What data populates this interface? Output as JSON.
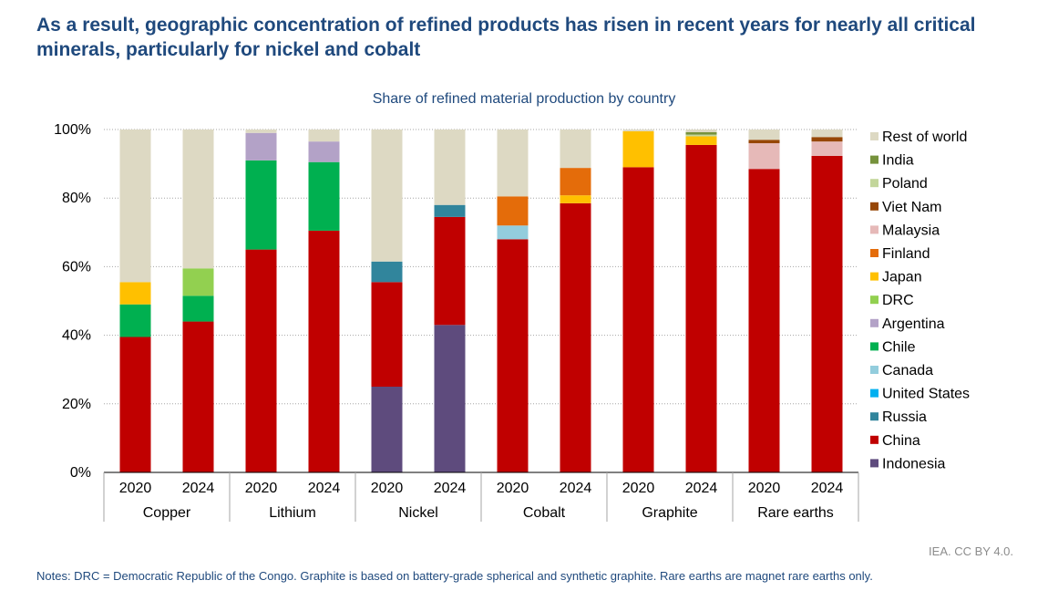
{
  "title": "As a result, geographic concentration of refined products has risen in recent years for nearly all critical minerals, particularly for nickel and cobalt",
  "source": "IEA. CC BY 4.0.",
  "notes": "Notes: DRC = Democratic Republic of the Congo. Graphite is based on battery-grade spherical and synthetic graphite. Rare earths are magnet rare earths only.",
  "chart_data": {
    "type": "bar",
    "stacked": true,
    "title": "Share of refined material production by country",
    "ylim": [
      0,
      100
    ],
    "yticks": [
      0,
      20,
      40,
      60,
      80,
      100
    ],
    "ytick_labels": [
      "0%",
      "20%",
      "40%",
      "60%",
      "80%",
      "100%"
    ],
    "grid": "dotted horizontal",
    "legend_position": "right",
    "groups": [
      "Copper",
      "Lithium",
      "Nickel",
      "Cobalt",
      "Graphite",
      "Rare earths"
    ],
    "categories": [
      "2020",
      "2024",
      "2020",
      "2024",
      "2020",
      "2024",
      "2020",
      "2024",
      "2020",
      "2024",
      "2020",
      "2024"
    ],
    "series": [
      {
        "name": "Indonesia",
        "color": "#5e4b7d",
        "values": [
          0,
          0,
          0,
          0,
          25,
          43,
          0,
          0,
          0,
          0,
          0,
          0
        ]
      },
      {
        "name": "China",
        "color": "#c00000",
        "values": [
          39.5,
          44,
          65,
          70.5,
          30.5,
          31.5,
          68,
          78.5,
          89,
          95.5,
          88.5,
          92.3
        ]
      },
      {
        "name": "Russia",
        "color": "#31859c",
        "values": [
          0,
          0,
          0,
          0,
          6,
          3.5,
          0,
          0,
          0,
          0,
          0,
          0
        ]
      },
      {
        "name": "United States",
        "color": "#00b0f0",
        "values": [
          0,
          0,
          0,
          0,
          0,
          0,
          0,
          0,
          0,
          0,
          0,
          0
        ]
      },
      {
        "name": "Canada",
        "color": "#93cddd",
        "values": [
          0,
          0,
          0,
          0,
          0,
          0,
          4,
          0,
          0,
          0,
          0,
          0
        ]
      },
      {
        "name": "Chile",
        "color": "#00b050",
        "values": [
          9.5,
          7.5,
          26,
          20,
          0,
          0,
          0,
          0,
          0,
          0,
          0,
          0
        ]
      },
      {
        "name": "Argentina",
        "color": "#b3a2c7",
        "values": [
          0,
          0,
          8,
          6,
          0,
          0,
          0,
          0,
          0,
          0,
          0,
          0
        ]
      },
      {
        "name": "DRC",
        "color": "#92d050",
        "values": [
          0,
          8,
          0,
          0,
          0,
          0,
          0,
          0,
          0,
          0,
          0,
          0
        ]
      },
      {
        "name": "Japan",
        "color": "#ffc000",
        "values": [
          6.5,
          0,
          0,
          0,
          0,
          0,
          0,
          2.3,
          10.5,
          2.5,
          0,
          0
        ]
      },
      {
        "name": "Finland",
        "color": "#e46c0a",
        "values": [
          0,
          0,
          0,
          0,
          0,
          0,
          8.5,
          8,
          0,
          0,
          0,
          0
        ]
      },
      {
        "name": "Malaysia",
        "color": "#e6b9b8",
        "values": [
          0,
          0,
          0,
          0,
          0,
          0,
          0,
          0,
          0,
          0,
          7.5,
          4.2
        ]
      },
      {
        "name": "Viet Nam",
        "color": "#974706",
        "values": [
          0,
          0,
          0,
          0,
          0,
          0,
          0,
          0,
          0,
          0,
          1,
          1.3
        ]
      },
      {
        "name": "Poland",
        "color": "#c3d69b",
        "values": [
          0,
          0,
          0,
          0,
          0,
          0,
          0,
          0,
          0,
          0.5,
          0,
          0
        ]
      },
      {
        "name": "India",
        "color": "#76923c",
        "values": [
          0,
          0,
          0,
          0,
          0,
          0,
          0,
          0,
          0,
          0.7,
          0,
          0
        ]
      },
      {
        "name": "Rest of world",
        "color": "#ddd9c3",
        "values": [
          44.5,
          40.5,
          1,
          3.5,
          38.5,
          22,
          19.5,
          11.2,
          0.5,
          0.8,
          3,
          2.2
        ]
      }
    ]
  }
}
